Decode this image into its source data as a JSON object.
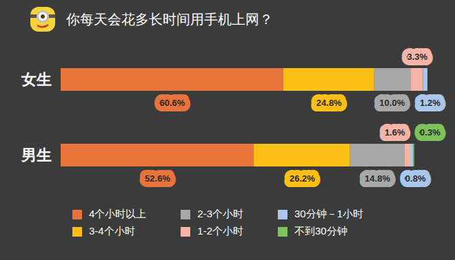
{
  "chart_data": {
    "type": "bar",
    "title": "你每天会花多长时间用手机上网？",
    "orientation": "horizontal",
    "stacked": true,
    "data_labels": true,
    "tick_labels": "y",
    "legend": "bottom",
    "categories": [
      "女生",
      "男生"
    ],
    "series": [
      {
        "name": "4个小时以上",
        "color": "#e8743b",
        "values": [
          60.6,
          52.6
        ],
        "value_labels": [
          "60.6%",
          "52.6%"
        ]
      },
      {
        "name": "3-4个小时",
        "color": "#fbbf16",
        "values": [
          24.8,
          26.2
        ],
        "value_labels": [
          "24.8%",
          "26.2%"
        ]
      },
      {
        "name": "2-3个小时",
        "color": "#a8a8a8",
        "values": [
          10.0,
          14.8
        ],
        "value_labels": [
          "10.0%",
          "14.8%"
        ]
      },
      {
        "name": "1-2个小时",
        "color": "#f4b5a6",
        "values": [
          3.3,
          1.6
        ],
        "value_labels": [
          "3.3%",
          "1.6%"
        ]
      },
      {
        "name": "30分钟－1小时",
        "color": "#a9c7ea",
        "values": [
          1.2,
          0.8
        ],
        "value_labels": [
          "1.2%",
          "0.8%"
        ]
      },
      {
        "name": "不到30分钟",
        "color": "#7dc25a",
        "values": [
          null,
          0.3
        ],
        "value_labels": [
          null,
          "0.3%"
        ]
      }
    ]
  }
}
